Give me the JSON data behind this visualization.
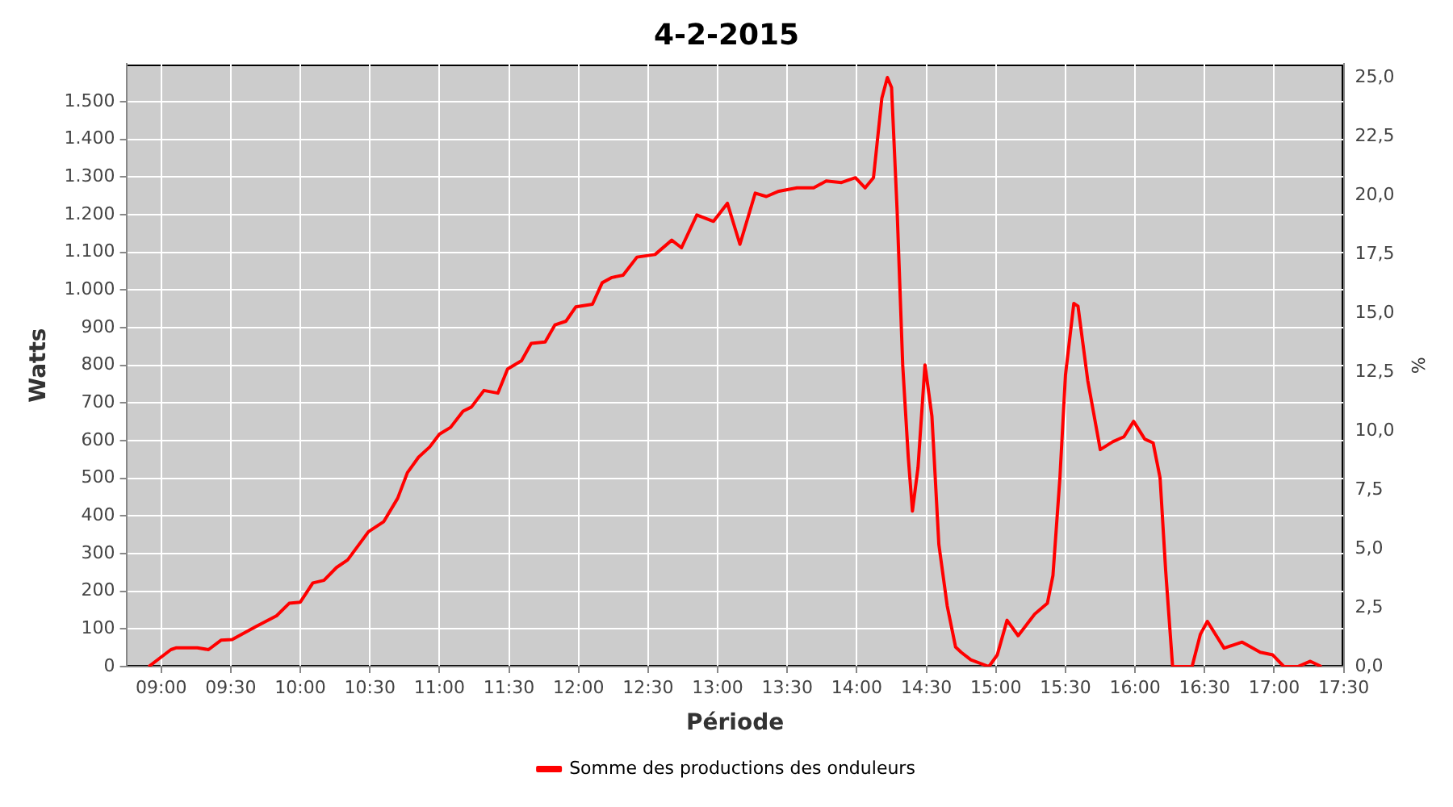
{
  "chart_data": {
    "type": "line",
    "title": "4-2-2015",
    "xlabel": "Période",
    "ylabel": "Watts",
    "y2label": "%",
    "xlim": [
      8.75,
      17.5
    ],
    "xticks": [
      {
        "value": 9,
        "label": "09:00"
      },
      {
        "value": 9.5,
        "label": "09:30"
      },
      {
        "value": 10,
        "label": "10:00"
      },
      {
        "value": 10.5,
        "label": "10:30"
      },
      {
        "value": 11,
        "label": "11:00"
      },
      {
        "value": 11.5,
        "label": "11:30"
      },
      {
        "value": 12,
        "label": "12:00"
      },
      {
        "value": 12.5,
        "label": "12:30"
      },
      {
        "value": 13,
        "label": "13:00"
      },
      {
        "value": 13.5,
        "label": "13:30"
      },
      {
        "value": 14,
        "label": "14:00"
      },
      {
        "value": 14.5,
        "label": "14:30"
      },
      {
        "value": 15,
        "label": "15:00"
      },
      {
        "value": 15.5,
        "label": "15:30"
      },
      {
        "value": 16,
        "label": "16:00"
      },
      {
        "value": 16.5,
        "label": "16:30"
      },
      {
        "value": 17,
        "label": "17:00"
      },
      {
        "value": 17.5,
        "label": "17:30"
      }
    ],
    "ylim": [
      0,
      1600
    ],
    "yticks": [
      0,
      100,
      200,
      300,
      400,
      500,
      600,
      700,
      800,
      900,
      {
        "value": 1000,
        "label": "1.000"
      },
      {
        "value": 1100,
        "label": "1.100"
      },
      {
        "value": 1200,
        "label": "1.200"
      },
      {
        "value": 1300,
        "label": "1.300"
      },
      {
        "value": 1400,
        "label": "1.400"
      },
      {
        "value": 1500,
        "label": "1.500"
      }
    ],
    "y2lim": [
      0,
      25.6
    ],
    "y2ticks": [
      {
        "value": 0,
        "label": "0,0"
      },
      {
        "value": 2.5,
        "label": "2,5"
      },
      {
        "value": 5,
        "label": "5,0"
      },
      {
        "value": 7.5,
        "label": "7,5"
      },
      {
        "value": 10,
        "label": "10,0"
      },
      {
        "value": 12.5,
        "label": "12,5"
      },
      {
        "value": 15,
        "label": "15,0"
      },
      {
        "value": 17.5,
        "label": "17,5"
      },
      {
        "value": 20,
        "label": "20,0"
      },
      {
        "value": 22.5,
        "label": "22,5"
      },
      {
        "value": 25,
        "label": "25,0"
      }
    ],
    "grid": true,
    "legend": "bottom",
    "marker": "none",
    "line_style": "solid",
    "series": [
      {
        "name": "Somme des productions des onduleurs",
        "color": "#ff0000",
        "x": [
          8.91,
          9.07,
          9.11,
          9.26,
          9.34,
          9.43,
          9.51,
          9.68,
          9.83,
          9.92,
          10.0,
          10.09,
          10.17,
          10.26,
          10.34,
          10.49,
          10.6,
          10.7,
          10.77,
          10.85,
          10.93,
          11.0,
          11.08,
          11.17,
          11.23,
          11.32,
          11.42,
          11.49,
          11.59,
          11.66,
          11.76,
          11.83,
          11.91,
          11.98,
          12.1,
          12.17,
          12.24,
          12.32,
          12.42,
          12.55,
          12.67,
          12.74,
          12.85,
          12.97,
          13.07,
          13.16,
          13.27,
          13.35,
          13.44,
          13.57,
          13.69,
          13.78,
          13.89,
          13.99,
          14.06,
          14.12,
          14.18,
          14.22,
          14.25,
          14.29,
          14.33,
          14.37,
          14.4,
          14.44,
          14.49,
          14.54,
          14.59,
          14.65,
          14.71,
          14.75,
          14.82,
          14.95,
          15.01,
          15.08,
          15.16,
          15.28,
          15.37,
          15.41,
          15.46,
          15.5,
          15.56,
          15.59,
          15.66,
          15.75,
          15.84,
          15.92,
          15.99,
          16.07,
          16.13,
          16.18,
          16.22,
          16.27,
          16.41,
          16.47,
          16.52,
          16.64,
          16.77,
          16.9,
          16.99,
          17.07,
          17.17,
          17.26,
          17.34
        ],
        "values": [
          0,
          45,
          50,
          50,
          45,
          70,
          72,
          106,
          135,
          168,
          171,
          222,
          229,
          263,
          283,
          358,
          385,
          447,
          515,
          556,
          583,
          617,
          635,
          678,
          689,
          733,
          726,
          790,
          812,
          858,
          862,
          907,
          917,
          955,
          962,
          1019,
          1033,
          1039,
          1087,
          1094,
          1132,
          1112,
          1199,
          1182,
          1230,
          1121,
          1257,
          1248,
          1262,
          1271,
          1271,
          1289,
          1285,
          1298,
          1271,
          1298,
          1509,
          1564,
          1537,
          1210,
          801,
          556,
          413,
          528,
          801,
          665,
          324,
          161,
          52,
          38,
          18,
          0,
          31,
          123,
          82,
          140,
          168,
          242,
          501,
          774,
          964,
          957,
          760,
          576,
          597,
          610,
          651,
          604,
          594,
          501,
          256,
          0,
          0,
          86,
          120,
          49,
          65,
          38,
          31,
          0,
          0,
          14,
          0
        ]
      }
    ]
  }
}
